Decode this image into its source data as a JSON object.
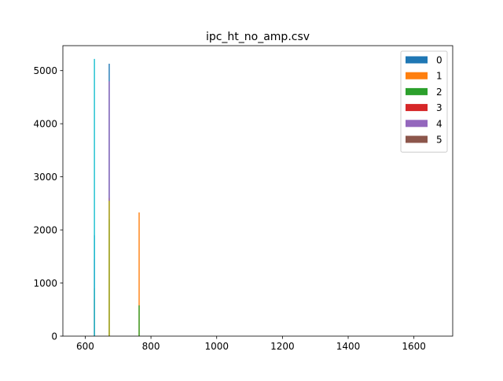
{
  "chart_data": {
    "type": "bar",
    "title": "ipc_ht_no_amp.csv",
    "xlabel": "",
    "ylabel": "",
    "xlim": [
      532,
      1718
    ],
    "ylim": [
      0,
      5470
    ],
    "xticks": [
      600,
      800,
      1000,
      1200,
      1400,
      1600
    ],
    "yticks": [
      0,
      1000,
      2000,
      3000,
      4000,
      5000
    ],
    "legend_position": "top-right",
    "series": [
      {
        "name": "0",
        "color": "#1f77b4",
        "bars": [
          {
            "x": 673,
            "y": 5130
          },
          {
            "x": 628,
            "y": 1900
          }
        ]
      },
      {
        "name": "1",
        "color": "#ff7f0e",
        "bars": [
          {
            "x": 764,
            "y": 2330
          },
          {
            "x": 673,
            "y": 2600
          }
        ]
      },
      {
        "name": "2",
        "color": "#2ca02c",
        "bars": [
          {
            "x": 764,
            "y": 580
          },
          {
            "x": 673,
            "y": 2200
          }
        ]
      },
      {
        "name": "3",
        "color": "#d62728",
        "bars": [
          {
            "x": 628,
            "y": 700
          }
        ]
      },
      {
        "name": "4",
        "color": "#9467bd",
        "bars": [
          {
            "x": 628,
            "y": 1450
          },
          {
            "x": 673,
            "y": 4800
          }
        ]
      },
      {
        "name": "5",
        "color": "#8c564b",
        "bars": [
          {
            "x": 628,
            "y": 900
          }
        ]
      },
      {
        "name": "",
        "color": "#17becf",
        "bars": [
          {
            "x": 628,
            "y": 5220
          }
        ]
      },
      {
        "name": "",
        "color": "#bcbd22",
        "bars": [
          {
            "x": 673,
            "y": 2550
          }
        ]
      }
    ]
  }
}
